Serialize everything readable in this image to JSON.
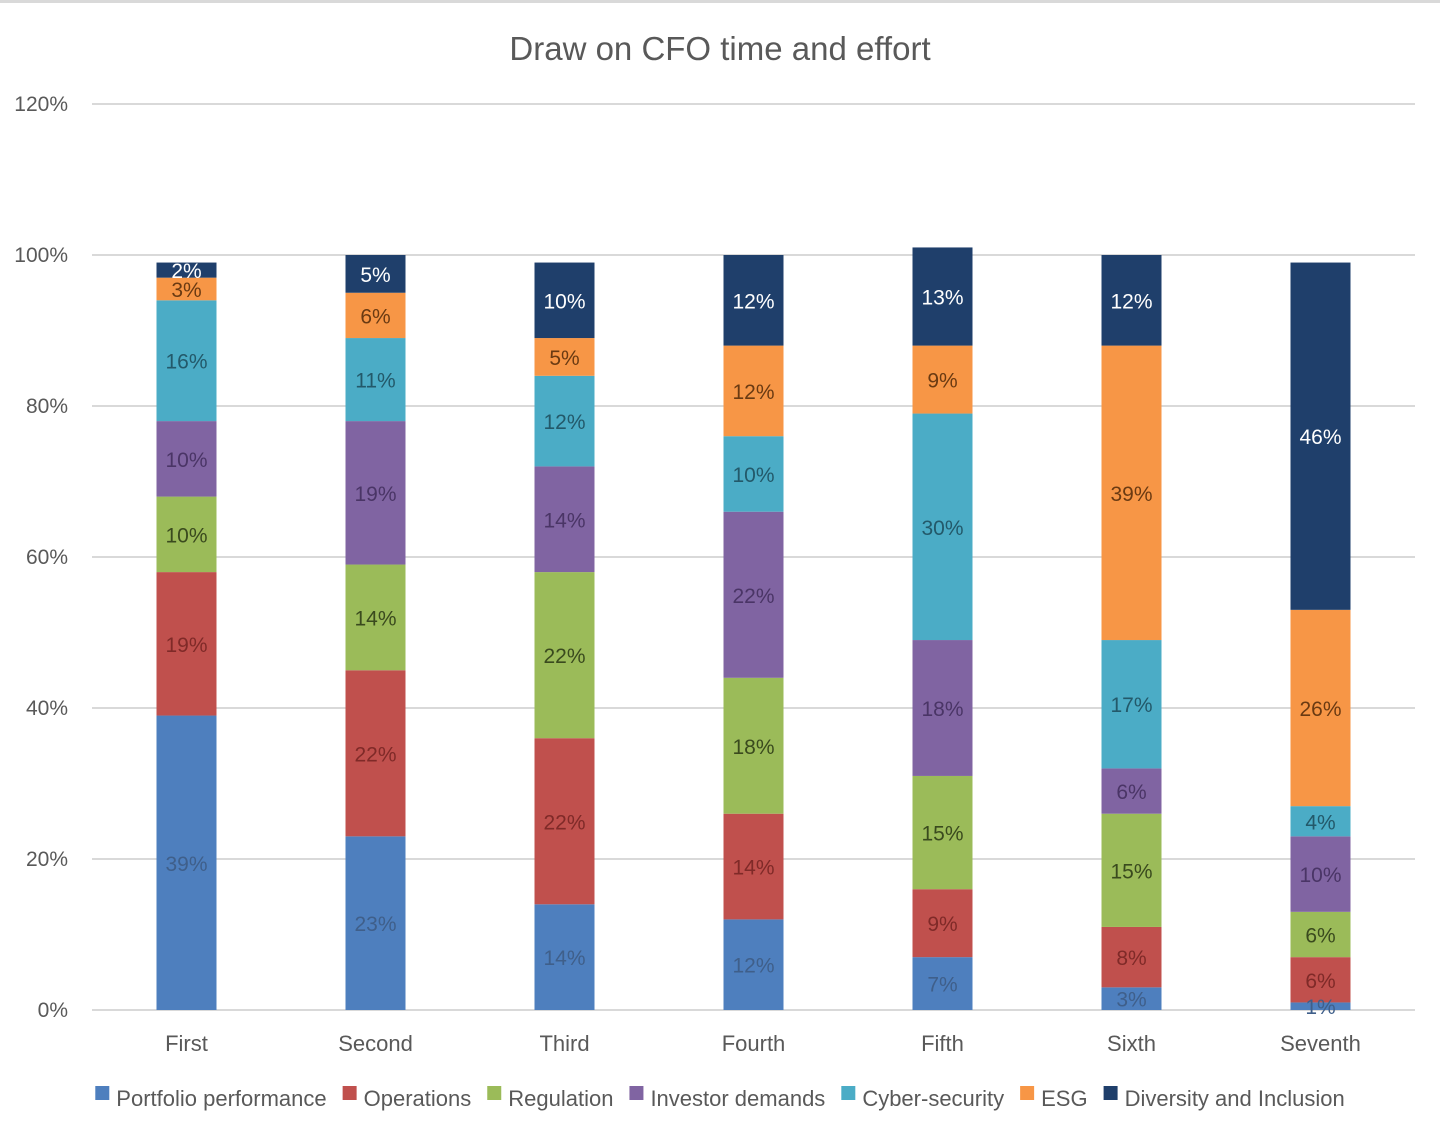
{
  "chart_data": {
    "type": "bar",
    "stacked": true,
    "title": "Draw on CFO time and effort",
    "xlabel": "",
    "ylabel": "",
    "ylim": [
      0,
      1.2
    ],
    "yticks": [
      0,
      0.2,
      0.4,
      0.6,
      0.8,
      1.0,
      1.2
    ],
    "ytick_labels": [
      "0%",
      "20%",
      "40%",
      "60%",
      "80%",
      "100%",
      "120%"
    ],
    "grid": true,
    "legend_position": "bottom",
    "categories": [
      "First",
      "Second",
      "Third",
      "Fourth",
      "Fifth",
      "Sixth",
      "Seventh"
    ],
    "series": [
      {
        "name": "Portfolio performance",
        "color": "#4e7fbe",
        "label_color": "#3f5f8a",
        "values": [
          0.39,
          0.23,
          0.14,
          0.12,
          0.07,
          0.03,
          0.01
        ]
      },
      {
        "name": "Operations",
        "color": "#c0504d",
        "label_color": "#7f2a28",
        "values": [
          0.19,
          0.22,
          0.22,
          0.14,
          0.09,
          0.08,
          0.06
        ]
      },
      {
        "name": "Regulation",
        "color": "#9bbb59",
        "label_color": "#3a4a1e",
        "values": [
          0.1,
          0.14,
          0.22,
          0.18,
          0.15,
          0.15,
          0.06
        ]
      },
      {
        "name": "Investor demands",
        "color": "#8064a2",
        "label_color": "#4a3566",
        "values": [
          0.1,
          0.19,
          0.14,
          0.22,
          0.18,
          0.06,
          0.1
        ]
      },
      {
        "name": "Cyber-security",
        "color": "#4bacc6",
        "label_color": "#23596a",
        "values": [
          0.16,
          0.11,
          0.12,
          0.1,
          0.3,
          0.17,
          0.04
        ]
      },
      {
        "name": "ESG",
        "color": "#f79646",
        "label_color": "#6a3a12",
        "values": [
          0.03,
          0.06,
          0.05,
          0.12,
          0.09,
          0.39,
          0.26
        ]
      },
      {
        "name": "Diversity and Inclusion",
        "color": "#1f3f6b",
        "label_color": "#ffffff",
        "values": [
          0.02,
          0.05,
          0.1,
          0.12,
          0.13,
          0.12,
          0.46
        ]
      }
    ],
    "data_labels": [
      [
        "39%",
        "23%",
        "14%",
        "12%",
        "7%",
        "3%",
        "1%"
      ],
      [
        "19%",
        "22%",
        "22%",
        "14%",
        "9%",
        "8%",
        "6%"
      ],
      [
        "10%",
        "14%",
        "22%",
        "18%",
        "15%",
        "15%",
        "6%"
      ],
      [
        "10%",
        "19%",
        "14%",
        "22%",
        "18%",
        "6%",
        "10%"
      ],
      [
        "16%",
        "11%",
        "12%",
        "10%",
        "30%",
        "17%",
        "4%"
      ],
      [
        "3%",
        "6%",
        "5%",
        "12%",
        "9%",
        "39%",
        "26%"
      ],
      [
        "2%",
        "5%",
        "10%",
        "12%",
        "13%",
        "12%",
        "46%"
      ]
    ]
  }
}
